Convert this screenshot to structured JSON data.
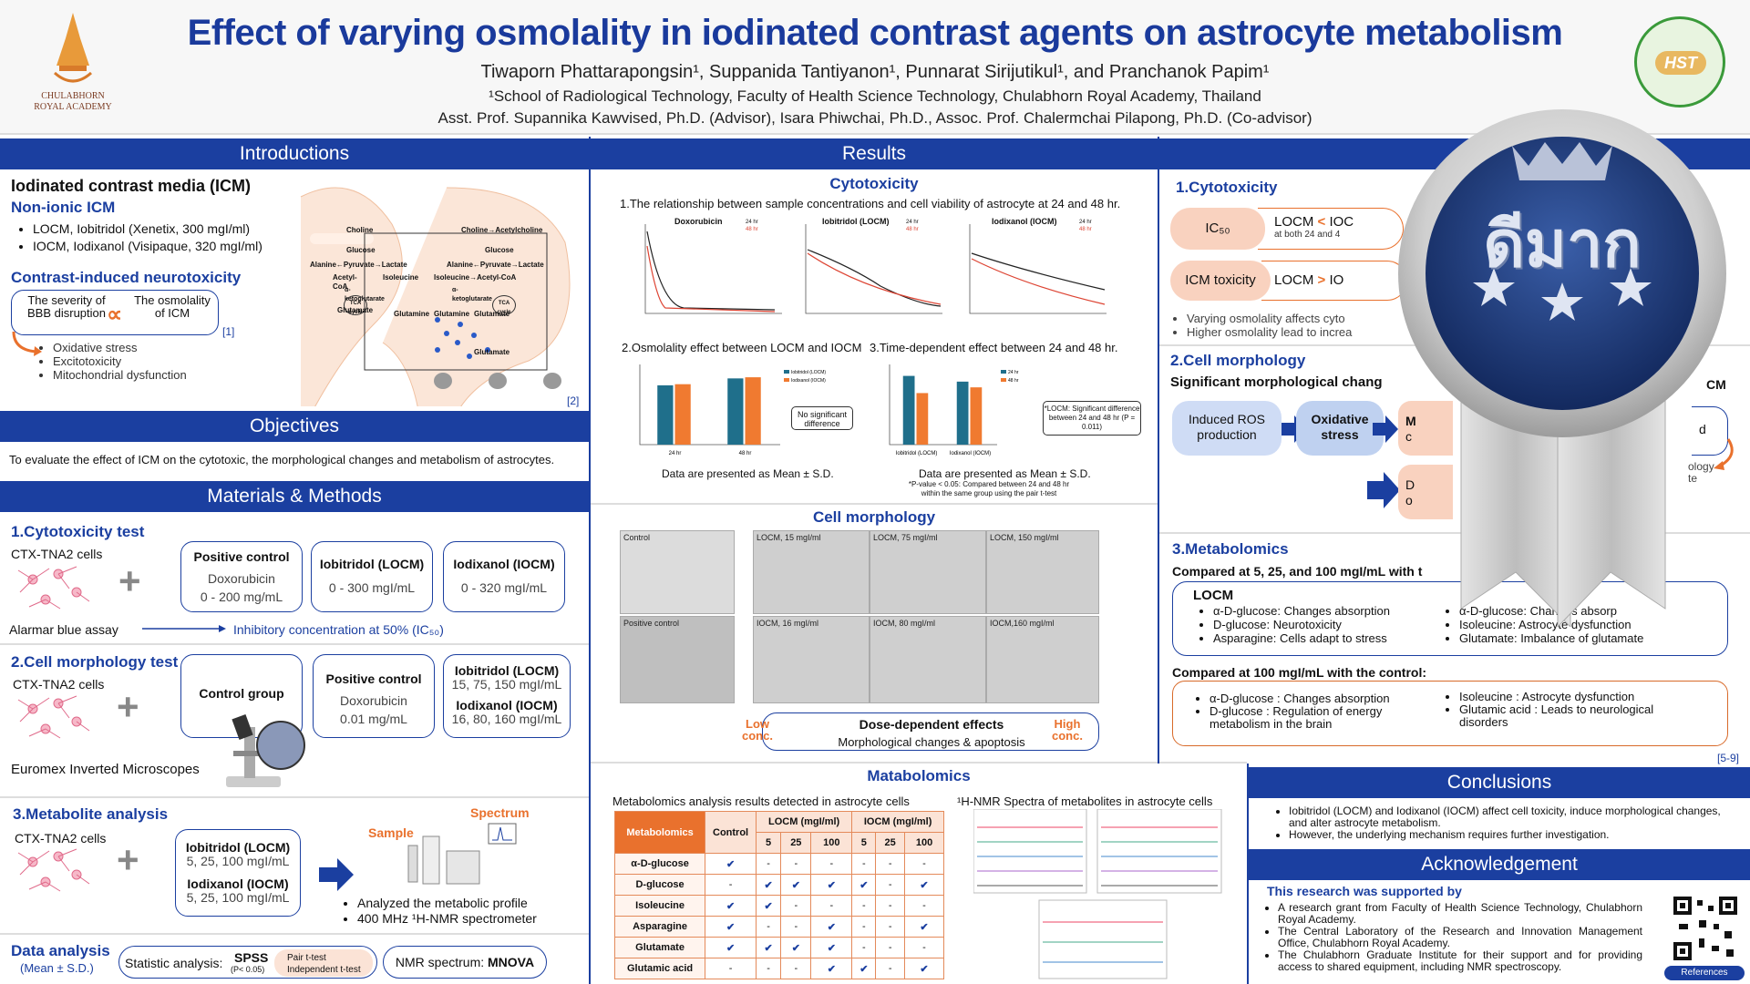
{
  "header": {
    "title": "Effect of varying osmolality in iodinated contrast agents on astrocyte metabolism",
    "authors": "Tiwaporn Phattarapongsin¹, Suppanida Tantiyanon¹, Punnarat Sirijutikul¹, and Pranchanok Papim¹",
    "affiliation": "¹School of Radiological Technology, Faculty of Health Science Technology, Chulabhorn Royal Academy, Thailand",
    "advisors": "Asst. Prof. Supannika Kawvised, Ph.D. (Advisor), Isara Phiwchai, Ph.D., Assoc. Prof. Chalermchai Pilapong, Ph.D. (Co-advisor)",
    "logo_left_line1": "CHULABHORN",
    "logo_left_line2": "ROYAL ACADEMY",
    "logo_right": "HST"
  },
  "intro": {
    "bar": "Introductions",
    "h1": "Iodinated contrast media (ICM)",
    "h2": "Non-ionic ICM",
    "items": [
      "LOCM, Iobitridol (Xenetix, 300 mgI/ml)",
      "IOCM, Iodixanol (Visipaque, 320 mgI/ml)"
    ],
    "h3": "Contrast-induced neurotoxicity",
    "sev": "The severity of BBB disruption",
    "prop": "∝",
    "osm": "The osmolality of ICM",
    "ref1": "[1]",
    "effects": [
      "Oxidative stress",
      "Excitotoxicity",
      "Mitochondrial dysfunction"
    ],
    "ref2": "[2]",
    "diagram": [
      "Choline",
      "Choline→Acetylcholine",
      "Glucose",
      "Glucose",
      "Alanine←Pyruvate→Lactate",
      "Alanine←Pyruvate→Lactate",
      "Acetyl-CoA",
      "Isoleucine",
      "Isoleucine→Acetyl-CoA",
      "α-ketoglutarate",
      "α-ketoglutarate",
      "TCA cycle",
      "TCA cycle",
      "Glutamate",
      "Glutamine",
      "Glutamine",
      "Glutamate",
      "Glutamate"
    ]
  },
  "obj": {
    "bar": "Objectives",
    "text": "To evaluate the effect of ICM on the cytotoxic, the morphological changes and metabolism of astrocytes."
  },
  "mm": {
    "bar": "Materials & Methods",
    "s1": "1.Cytotoxicity test",
    "cells": "CTX-TNA2 cells",
    "plus": "+",
    "pos_t": "Positive control",
    "pos_v1": "Doxorubicin",
    "pos_v2": "0 - 200 mg/mL",
    "locm_t": "Iobitridol (LOCM)",
    "locm_v": "0 - 300 mgI/mL",
    "iocm_t": "Iodixanol (IOCM)",
    "iocm_v": "0 - 320 mgI/mL",
    "alamar": "Alarmar blue assay",
    "ic50": "Inhibitory concentration at 50% (IC₅₀)",
    "s2": "2.Cell morphology test",
    "cells2": "CTX-TNA2 cells",
    "ctrl": "Control group",
    "pos2_t": "Positive control",
    "pos2_v1": "Doxorubicin",
    "pos2_v2": "0.01 mg/mL",
    "l2_t": "Iobitridol (LOCM)",
    "l2_v": "15, 75, 150  mgI/mL",
    "i2_t": "Iodixanol (IOCM)",
    "i2_v": "16, 80, 160  mgI/mL",
    "micro": "Euromex Inverted Microscopes",
    "s3": "3.Metabolite analysis",
    "cells3": "CTX-TNA2 cells",
    "l3_t": "Iobitridol (LOCM)",
    "l3_v": "5, 25, 100  mgI/mL",
    "i3_t": "Iodixanol (IOCM)",
    "i3_v": "5, 25, 100  mgI/mL",
    "sample": "Sample",
    "spectrum": "Spectrum",
    "analy": [
      "Analyzed the metabolic profile",
      "400 MHz ¹H-NMR spectrometer"
    ],
    "da": "Data analysis",
    "da2": "(Mean ± S.D.)",
    "stat": "Statistic analysis:",
    "spss": "SPSS",
    "spss2": "(P< 0.05)",
    "tests": [
      "Pair t-test",
      "Independent t-test"
    ],
    "nmr": "NMR spectrum:",
    "mnova": "MNOVA"
  },
  "results": {
    "bar": "Results",
    "cyto": "Cytotoxicity",
    "cyto1": "1.The relationship between sample concentrations and cell viability of astrocyte at 24 and 48 hr.",
    "c1": "Doxorubicin",
    "c2": "Iobitridol (LOCM)",
    "c3": "Iodixanol (IOCM)",
    "leg24": "24 hr",
    "leg48": "48 hr",
    "cyto2": "2.Osmolality effect between LOCM and IOCM",
    "cyto3": "3.Time-dependent effect between 24 and 48 hr.",
    "nosig": "No significant difference",
    "locmsig": "*LOCM: Significant difference between 24 and 48 hr (P = 0.011)",
    "mean1": "Data are presented as Mean ± S.D.",
    "mean2": "Data are presented as Mean ± S.D.",
    "pval": "*P-value < 0.05: Compared between 24 and 48 hr within the same group using the pair t-test",
    "morph": "Cell morphology",
    "imgs": [
      "Control",
      "LOCM, 15 mgI/ml",
      "LOCM, 75 mgI/ml",
      "LOCM, 150 mgI/ml",
      "Positive control",
      "IOCM, 16 mgI/ml",
      "IOCM, 80 mgI/ml",
      "IOCM,160 mgI/ml"
    ],
    "dose": "Dose-dependent effects",
    "dose2": "Morphological changes & apoptosis",
    "low": "Low conc.",
    "high": "High conc.",
    "meta": "Matabolomics",
    "meta1": "Metabolomics analysis results detected in astrocyte cells",
    "meta2": "¹H-NMR Spectra of metabolites in astrocyte cells",
    "table": {
      "h": [
        "Metabolomics",
        "Control",
        "LOCM (mgI/ml)",
        "IOCM (mgI/ml)"
      ],
      "conc": [
        "5",
        "25",
        "100",
        "5",
        "25",
        "100"
      ],
      "rows": [
        [
          "α-D-glucose",
          "✔",
          "-",
          "-",
          "-",
          "-",
          "-",
          "-"
        ],
        [
          "D-glucose",
          "-",
          "✔",
          "✔",
          "✔",
          "✔",
          "-",
          "✔"
        ],
        [
          "Isoleucine",
          "✔",
          "✔",
          "-",
          "-",
          "-",
          "-",
          "-"
        ],
        [
          "Asparagine",
          "✔",
          "-",
          "-",
          "✔",
          "-",
          "-",
          "✔"
        ],
        [
          "Glutamate",
          "✔",
          "✔",
          "✔",
          "✔",
          "-",
          "-",
          "-"
        ],
        [
          "Glutamic acid",
          "-",
          "-",
          "-",
          "✔",
          "✔",
          "-",
          "✔"
        ]
      ]
    }
  },
  "right": {
    "s1": "1.Cytotoxicity",
    "ic": "IC₅₀",
    "icv": "LOCM",
    "icv2": "IOC",
    "icsub": "at both 24 and 4",
    "tox": "ICM toxicity",
    "toxv": "LOCM",
    "toxv2": "IO",
    "b1": "Varying osmolality affects cyto",
    "b2": "Higher osmolality lead to increa",
    "s2": "2.Cell morphology",
    "sig": "Significant morphological chang",
    "ros": "Induced ROS production",
    "ox": "Oxidative stress",
    "m": "M",
    "m2": "c",
    "d": "D",
    "d2": "o",
    "cm": "CM",
    "d3": "d",
    "ology": "ology",
    "te": "te",
    "s3": "3.Metabolomics",
    "cmp": "Compared at 5, 25, and 100 mgI/mL with t",
    "locm": "LOCM",
    "li": [
      "α-D-glucose: Changes absorption",
      "D-glucose: Neurotoxicity",
      "Asparagine: Cells adapt to stress"
    ],
    "ri": [
      "α-D-glucose: Changes absorp",
      "Isoleucine: Astrocyte dysfunction",
      "Glutamate: Imbalance of glutamate"
    ],
    "cmp2": "Compared at 100 mgI/mL with the control:",
    "l2": [
      "α-D-glucose : Changes absorption",
      "D-glucose : Regulation of energy metabolism in the brain"
    ],
    "r2": [
      "Isoleucine : Astrocyte dysfunction",
      "Glutamic acid : Leads to neurological disorders"
    ],
    "ref": "[5-9]"
  },
  "concl": {
    "bar": "Conclusions",
    "items": [
      "Iobitridol (LOCM) and Iodixanol (IOCM) affect cell toxicity, induce morphological changes, and alter astrocyte metabolism.",
      "However, the underlying mechanism requires further investigation."
    ]
  },
  "ack": {
    "bar": "Acknowledgement",
    "h": "This research was supported by",
    "items": [
      "A research grant from Faculty of Health Science Technology, Chulabhorn Royal Academy.",
      "The Central Laboratory of the Research and Innovation Management Office, Chulabhorn Royal Academy.",
      "The Chulabhorn Graduate Institute for their support and for providing access to shared equipment, including NMR spectroscopy."
    ],
    "ref": "References"
  },
  "medal": {
    "text": "ดีมาก"
  },
  "chart_data": [
    {
      "type": "bar",
      "title": "2.Osmolality effect between LOCM and IOCM",
      "categories": [
        "24 hr",
        "48 hr"
      ],
      "series": [
        {
          "name": "Iobitridol (LOCM)",
          "values": [
            103.56,
            115.62
          ]
        },
        {
          "name": "Iodixanol (IOCM)",
          "values": [
            105.52,
            117.61
          ]
        }
      ],
      "ylim": [
        0,
        140
      ]
    },
    {
      "type": "bar",
      "title": "3.Time-dependent effect between 24 and 48 hr.",
      "categories": [
        "Iobitridol (LOCM)",
        "Iodixanol (IOCM)"
      ],
      "series": [
        {
          "name": "24 hr",
          "values": [
            120,
            110
          ]
        },
        {
          "name": "48 hr",
          "values": [
            90,
            100
          ]
        }
      ],
      "ylim": [
        0,
        140
      ]
    }
  ],
  "colors": {
    "accent": "#1b3fa0",
    "orange": "#e9712d",
    "teal": "#1f6f8b"
  }
}
